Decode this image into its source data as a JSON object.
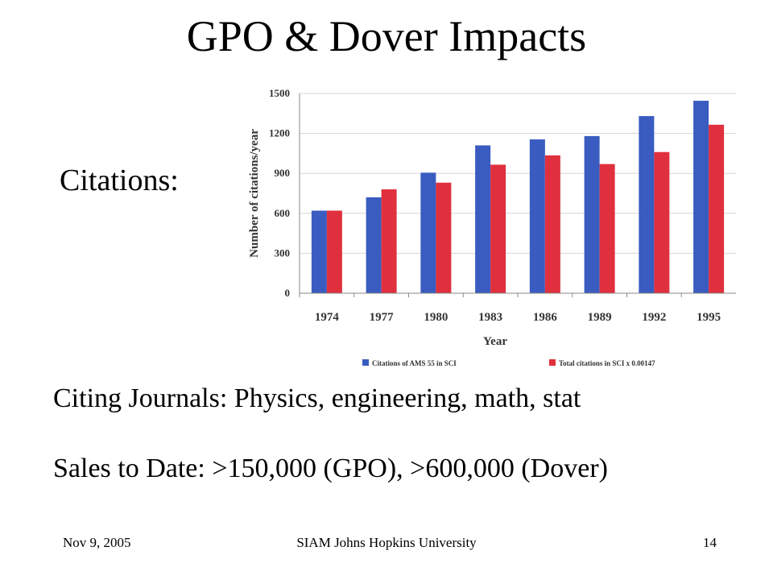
{
  "slide": {
    "title": "GPO & Dover Impacts",
    "citations_label": "Citations:",
    "journals_text": "Citing Journals:  Physics, engineering, math, stat",
    "sales_text": "Sales to Date:  >150,000 (GPO), >600,000 (Dover)"
  },
  "footer": {
    "date": "Nov 9, 2005",
    "center": "SIAM Johns Hopkins University",
    "page_number": "14"
  },
  "chart_data": {
    "type": "bar",
    "categories": [
      "1974",
      "1977",
      "1980",
      "1983",
      "1986",
      "1989",
      "1992",
      "1995"
    ],
    "series": [
      {
        "name": "Citations of AMS 55 in SCI",
        "color": "#3a5cc0",
        "values": [
          620,
          720,
          905,
          1110,
          1155,
          1180,
          1330,
          1445
        ]
      },
      {
        "name": "Total citations in SCI x 0.00147",
        "color": "#e0303d",
        "values": [
          620,
          780,
          830,
          965,
          1035,
          970,
          1060,
          1265
        ]
      }
    ],
    "xlabel": "Year",
    "ylabel": "Number of citations/year",
    "ylim": [
      0,
      1500
    ],
    "yticks": [
      0,
      300,
      600,
      900,
      1200,
      1500
    ],
    "grid": true,
    "legend_position": "bottom"
  }
}
